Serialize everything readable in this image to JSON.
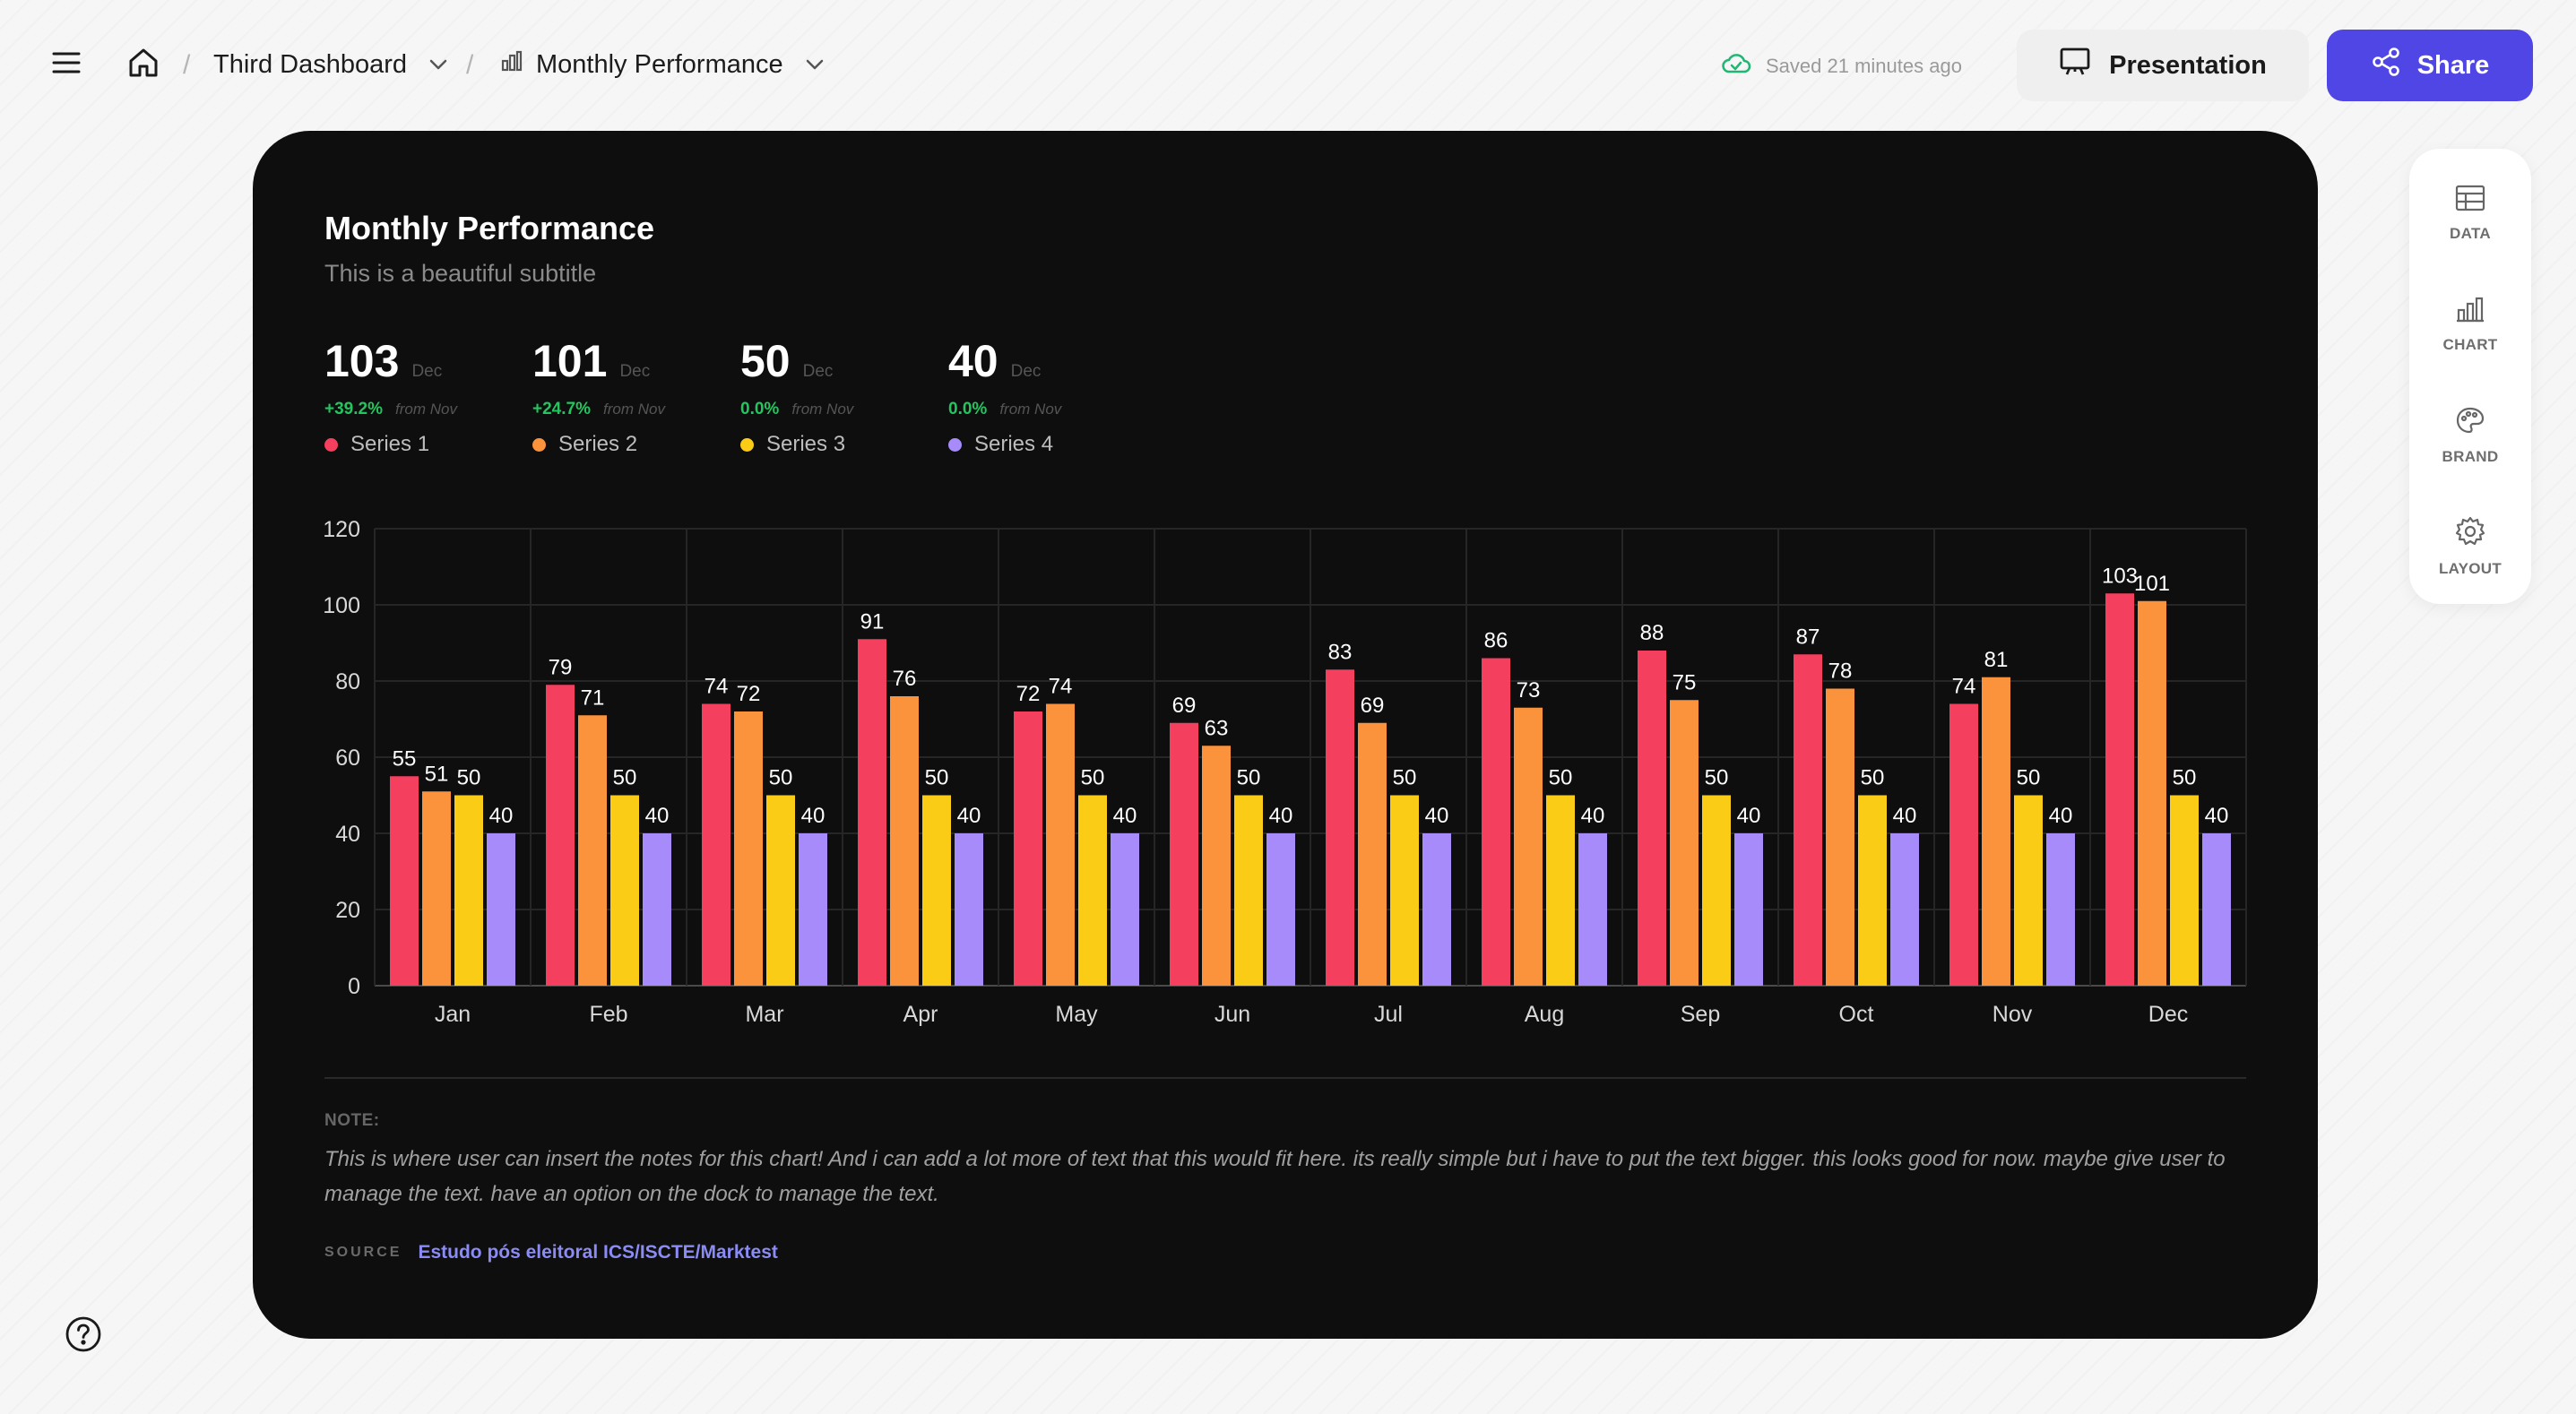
{
  "breadcrumb": {
    "dashboard": "Third Dashboard",
    "page": "Monthly Performance",
    "separator": "/"
  },
  "status": {
    "saved": "Saved 21 minutes ago"
  },
  "buttons": {
    "presentation": "Presentation",
    "share": "Share"
  },
  "dock": [
    {
      "label": "DATA",
      "icon": "table-icon"
    },
    {
      "label": "CHART",
      "icon": "bar-chart-icon"
    },
    {
      "label": "BRAND",
      "icon": "palette-icon"
    },
    {
      "label": "LAYOUT",
      "icon": "gear-icon"
    }
  ],
  "card": {
    "title": "Monthly Performance",
    "subtitle": "This is a beautiful subtitle",
    "kpis": [
      {
        "value": "103",
        "period": "Dec",
        "delta": "+39.2%",
        "from": "from Nov",
        "series": "Series 1",
        "color": "#f43f5e"
      },
      {
        "value": "101",
        "period": "Dec",
        "delta": "+24.7%",
        "from": "from Nov",
        "series": "Series 2",
        "color": "#fb923c"
      },
      {
        "value": "50",
        "period": "Dec",
        "delta": "0.0%",
        "from": "from Nov",
        "series": "Series 3",
        "color": "#facc15"
      },
      {
        "value": "40",
        "period": "Dec",
        "delta": "0.0%",
        "from": "from Nov",
        "series": "Series 4",
        "color": "#a78bfa"
      }
    ],
    "note_label": "NOTE:",
    "note_text": "This is where user can insert the notes for this chart! And i can add a lot more of text that this would fit here. its really simple but i have to put the text bigger. this looks good for now. maybe give user to manage the text. have an option on the dock to manage the text.",
    "source_label": "SOURCE",
    "source_text": "Estudo pós eleitoral ICS/ISCTE/Marktest"
  },
  "chart_data": {
    "type": "bar",
    "title": "Monthly Performance",
    "subtitle": "This is a beautiful subtitle",
    "categories": [
      "Jan",
      "Feb",
      "Mar",
      "Apr",
      "May",
      "Jun",
      "Jul",
      "Aug",
      "Sep",
      "Oct",
      "Nov",
      "Dec"
    ],
    "series": [
      {
        "name": "Series 1",
        "color": "#f43f5e",
        "values": [
          55,
          79,
          74,
          91,
          72,
          69,
          83,
          86,
          88,
          87,
          74,
          103
        ]
      },
      {
        "name": "Series 2",
        "color": "#fb923c",
        "values": [
          51,
          71,
          72,
          76,
          74,
          63,
          69,
          73,
          75,
          78,
          81,
          101
        ]
      },
      {
        "name": "Series 3",
        "color": "#facc15",
        "values": [
          50,
          50,
          50,
          50,
          50,
          50,
          50,
          50,
          50,
          50,
          50,
          50
        ]
      },
      {
        "name": "Series 4",
        "color": "#a78bfa",
        "values": [
          40,
          40,
          40,
          40,
          40,
          40,
          40,
          40,
          40,
          40,
          40,
          40
        ]
      }
    ],
    "yticks": [
      0,
      20,
      40,
      60,
      80,
      100,
      120
    ],
    "ylim": [
      0,
      120
    ],
    "grid": true,
    "data_labels": true,
    "xlabel": "",
    "ylabel": ""
  }
}
